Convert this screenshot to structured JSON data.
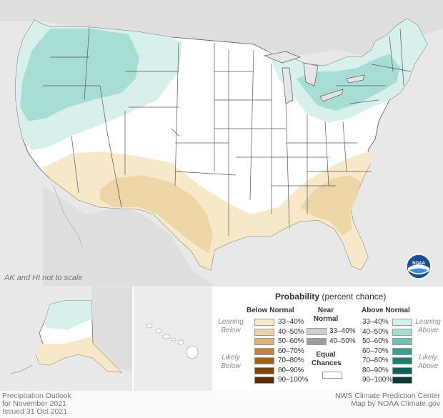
{
  "map_note": "AK and HI not to scale",
  "legend": {
    "title_bold": "Probability",
    "title_rest": "(percent chance)",
    "below_header": "Below Normal",
    "near_header": "Near Normal",
    "above_header": "Above Normal",
    "leaning_below": "Leaning Below",
    "likely_below": "Likely Below",
    "leaning_above": "Leaning Above",
    "likely_above": "Likely Above",
    "equal_chances": "Equal Chances",
    "below_categories": [
      {
        "label": "33–40%",
        "color": "#f6e8c8"
      },
      {
        "label": "40–50%",
        "color": "#ecd6a8"
      },
      {
        "label": "50–60%",
        "color": "#d8b273"
      },
      {
        "label": "60–70%",
        "color": "#c0873c"
      },
      {
        "label": "70–80%",
        "color": "#a0601f"
      },
      {
        "label": "80–90%",
        "color": "#7c4510"
      },
      {
        "label": "90–100%",
        "color": "#5b2f05"
      }
    ],
    "near_categories": [
      {
        "label": "33–40%",
        "color": "#cfcfcf"
      },
      {
        "label": "40–50%",
        "color": "#9d9d9d"
      }
    ],
    "above_categories": [
      {
        "label": "33–40%",
        "color": "#d8f0ec"
      },
      {
        "label": "40–50%",
        "color": "#a8ddd3"
      },
      {
        "label": "50–60%",
        "color": "#71c3b4"
      },
      {
        "label": "60–70%",
        "color": "#3a9f8e"
      },
      {
        "label": "70–80%",
        "color": "#1f7d6d"
      },
      {
        "label": "80–90%",
        "color": "#0f5e51"
      },
      {
        "label": "90–100%",
        "color": "#063c33"
      }
    ]
  },
  "footer": {
    "left_line1": "Precipitation Outlook",
    "left_line2": "for November 2021",
    "left_line3": "Issued 31 Oct 2021",
    "right_line1": "NWS Climate Prediction Center",
    "right_line2": "Map by NOAA Climate.gov"
  },
  "logo_text": "NOAA",
  "colors": {
    "background_land": "#dcdcdc",
    "equal_chances": "#ffffff",
    "state_border": "#444444"
  }
}
